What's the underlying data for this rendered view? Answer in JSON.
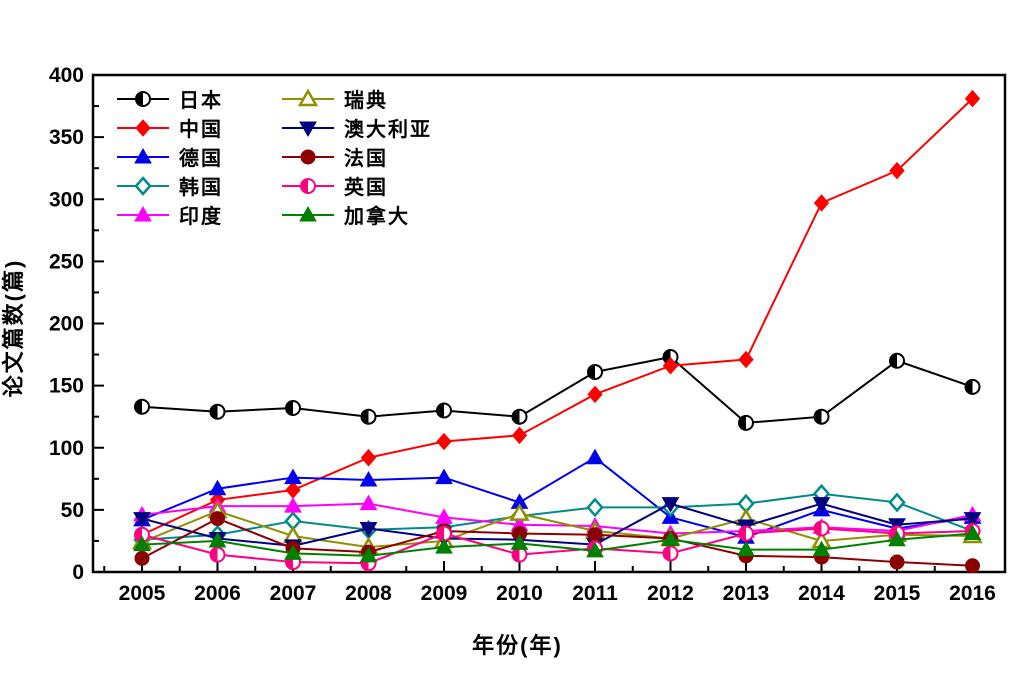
{
  "chart_data": {
    "type": "line",
    "title": "",
    "xlabel": "年份(年)",
    "ylabel": "论文篇数(篇)",
    "x": [
      2005,
      2006,
      2007,
      2008,
      2009,
      2010,
      2011,
      2012,
      2013,
      2014,
      2015,
      2016
    ],
    "ylim": [
      0,
      400
    ],
    "ytick_step": 50,
    "ytick_minor_step": 25,
    "grid": "off",
    "legend_position": "inside-top-left-two-columns",
    "series": [
      {
        "id": "japan",
        "name": "日本",
        "color": "#000000",
        "marker": "circle-half",
        "values": [
          133,
          129,
          132,
          125,
          130,
          125,
          161,
          173,
          120,
          125,
          170,
          149
        ]
      },
      {
        "id": "china",
        "name": "中国",
        "color": "#ff0000",
        "marker": "diamond",
        "values": [
          30,
          58,
          66,
          92,
          105,
          110,
          143,
          166,
          171,
          297,
          323,
          381
        ]
      },
      {
        "id": "germany",
        "name": "德国",
        "color": "#0000ee",
        "marker": "triangle-up",
        "values": [
          42,
          67,
          76,
          74,
          76,
          56,
          92,
          44,
          28,
          50,
          35,
          44
        ]
      },
      {
        "id": "korea",
        "name": "韩国",
        "color": "#008b8b",
        "marker": "diamond-open",
        "values": [
          26,
          30,
          41,
          34,
          36,
          45,
          52,
          52,
          55,
          63,
          56,
          33
        ]
      },
      {
        "id": "india",
        "name": "印度",
        "color": "#ff00ff",
        "marker": "triangle-up",
        "values": [
          46,
          53,
          53,
          55,
          44,
          38,
          37,
          31,
          33,
          36,
          33,
          46
        ]
      },
      {
        "id": "sweden",
        "name": "瑞典",
        "color": "#8f8f00",
        "marker": "triangle-open",
        "values": [
          24,
          49,
          29,
          20,
          25,
          47,
          33,
          27,
          43,
          25,
          30,
          29
        ]
      },
      {
        "id": "australia",
        "name": "澳大利亚",
        "color": "#000080",
        "marker": "triangle-down",
        "values": [
          43,
          27,
          21,
          35,
          27,
          26,
          22,
          55,
          37,
          55,
          38,
          43
        ]
      },
      {
        "id": "france",
        "name": "法国",
        "color": "#8b0000",
        "marker": "circle",
        "values": [
          11,
          43,
          19,
          16,
          33,
          31,
          30,
          27,
          13,
          12,
          8,
          5
        ]
      },
      {
        "id": "uk",
        "name": "英国",
        "color": "#ff0080",
        "marker": "circle-half",
        "values": [
          30,
          14,
          8,
          7,
          31,
          14,
          19,
          15,
          31,
          35,
          31,
          33
        ]
      },
      {
        "id": "canada",
        "name": "加拿大",
        "color": "#008000",
        "marker": "triangle-up",
        "values": [
          22,
          25,
          15,
          13,
          20,
          23,
          17,
          26,
          18,
          18,
          26,
          31
        ]
      }
    ],
    "legend_columns": [
      [
        "japan",
        "china",
        "germany",
        "korea",
        "india"
      ],
      [
        "sweden",
        "australia",
        "france",
        "uk",
        "canada"
      ]
    ]
  }
}
